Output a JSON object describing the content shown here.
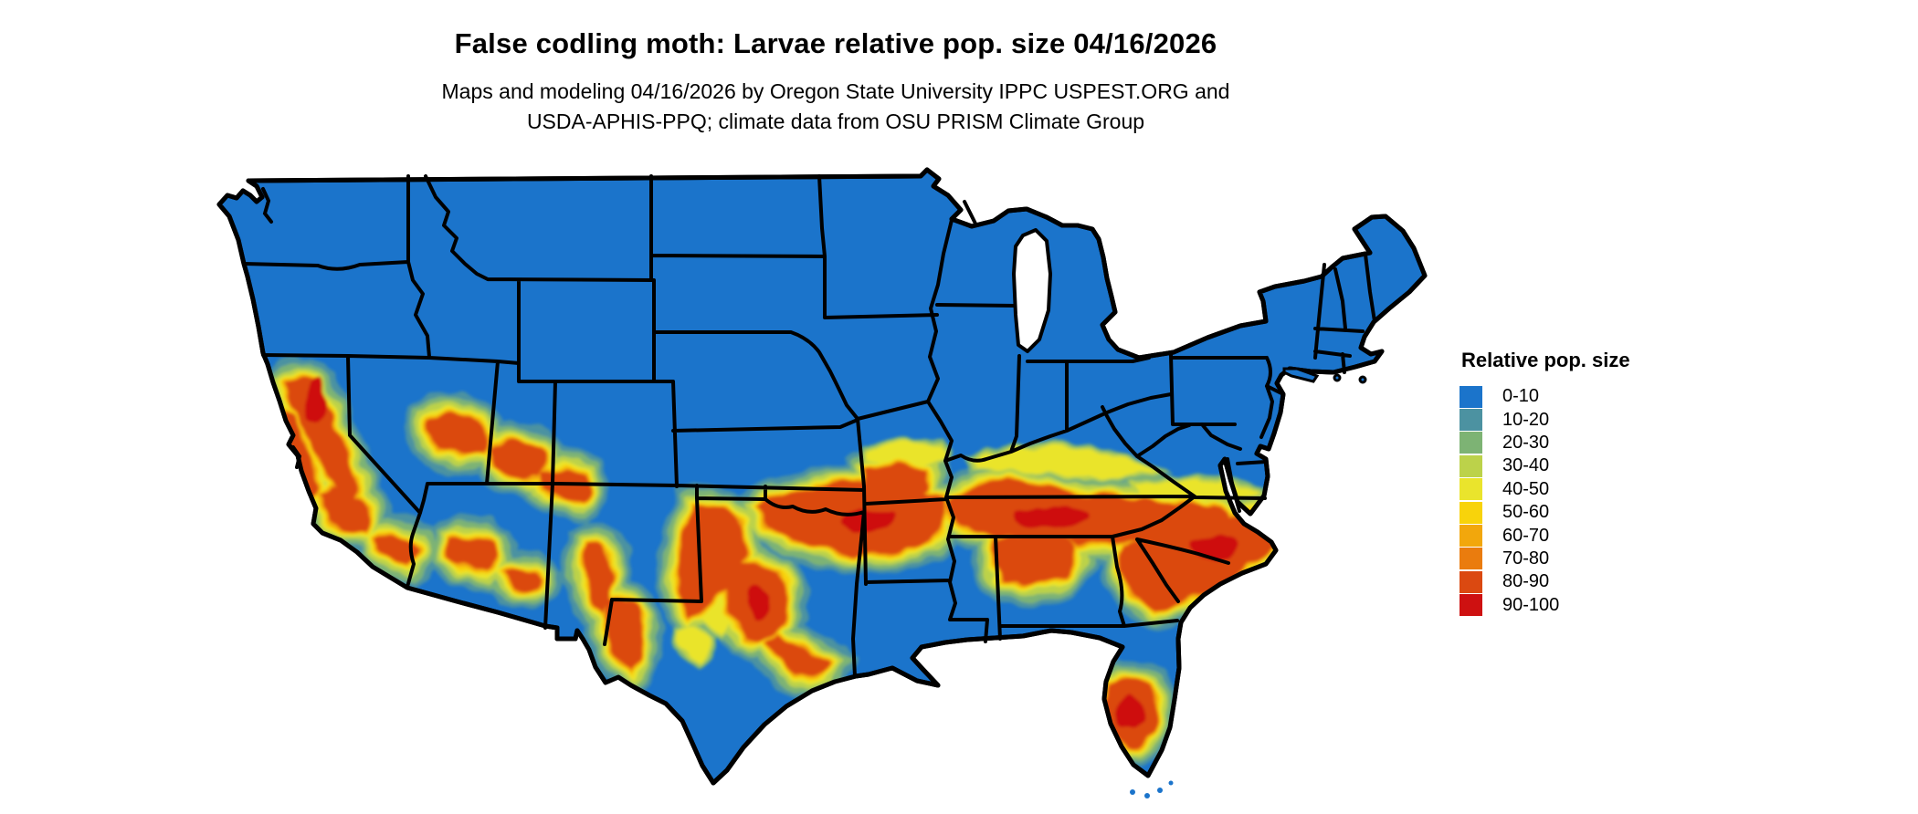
{
  "header": {
    "title": "False codling moth: Larvae relative pop. size 04/16/2026",
    "subtitle_line1": "Maps and modeling 04/16/2026 by Oregon State University IPPC USPEST.ORG and",
    "subtitle_line2": "USDA-APHIS-PPQ; climate data from OSU PRISM Climate Group"
  },
  "legend": {
    "title": "Relative pop. size",
    "items": [
      {
        "label": "0-10",
        "color": "#1B74CB"
      },
      {
        "label": "10-20",
        "color": "#4C92A1"
      },
      {
        "label": "20-30",
        "color": "#7DB374"
      },
      {
        "label": "30-40",
        "color": "#BCD24A"
      },
      {
        "label": "40-50",
        "color": "#EAE42C"
      },
      {
        "label": "50-60",
        "color": "#F8D30B"
      },
      {
        "label": "60-70",
        "color": "#F2A70C"
      },
      {
        "label": "70-80",
        "color": "#EA7C0E"
      },
      {
        "label": "80-90",
        "color": "#DB4911"
      },
      {
        "label": "90-100",
        "color": "#CE1111"
      }
    ]
  },
  "map": {
    "region": "Contiguous United States",
    "base_fill": "#1B74CB",
    "border_color": "#000000",
    "water_color": "#FFFFFF"
  }
}
